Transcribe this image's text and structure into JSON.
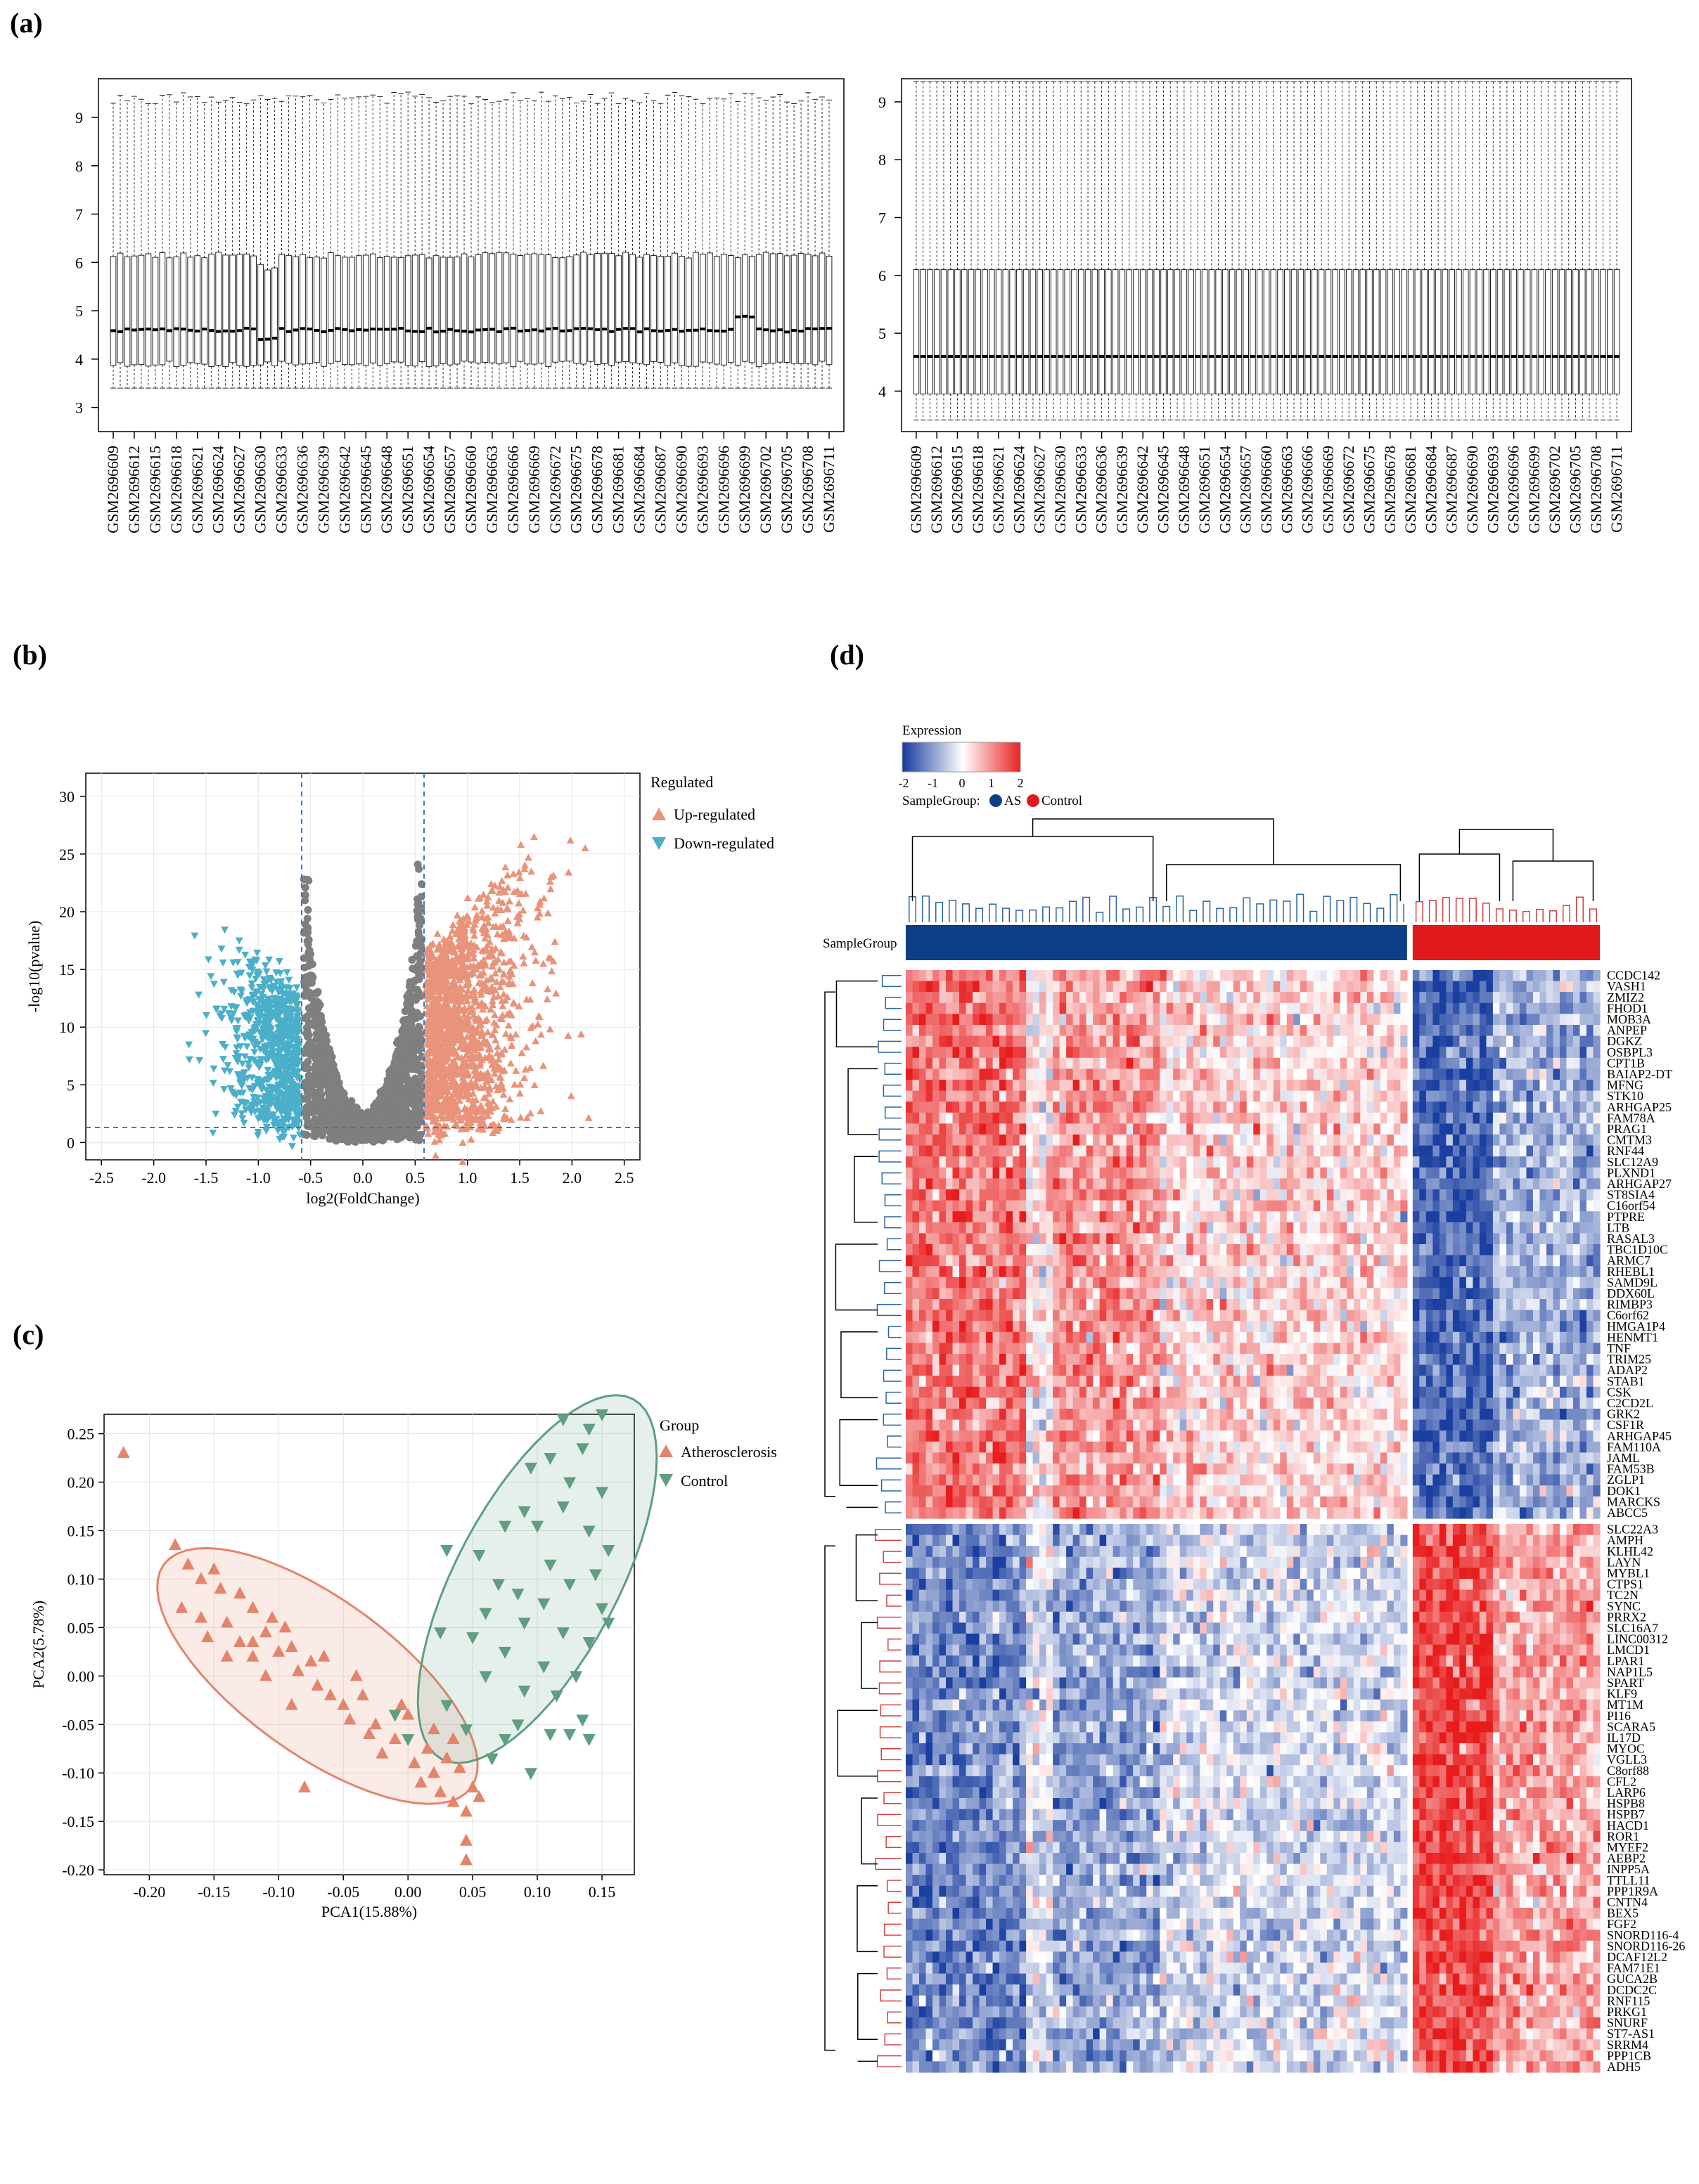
{
  "panels": {
    "a": "(a)",
    "b": "(b)",
    "c": "(c)",
    "d": "(d)"
  },
  "colors": {
    "up": "#e8937a",
    "down": "#4bafc9",
    "grey": "#7f7f7f",
    "atherosclerosis": "#e3856a",
    "control": "#5f9e80",
    "heat_high": "#e81c1c",
    "heat_low": "#1a3fa0",
    "as_bar": "#0d3f86",
    "control_bar": "#e01a1a"
  },
  "chart_data": [
    {
      "id": "a-left",
      "type": "box",
      "title": "",
      "xlabel": "",
      "ylabel": "",
      "ylim": [
        2.5,
        9.8
      ],
      "yticks": [
        3,
        4,
        5,
        6,
        7,
        8,
        9
      ],
      "samples": [
        "GSM2696609",
        "GSM2696612",
        "GSM2696615",
        "GSM2696618",
        "GSM2696621",
        "GSM2696624",
        "GSM2696627",
        "GSM2696630",
        "GSM2696633",
        "GSM2696636",
        "GSM2696639",
        "GSM2696642",
        "GSM2696645",
        "GSM2696648",
        "GSM2696651",
        "GSM2696654",
        "GSM2696657",
        "GSM2696660",
        "GSM2696663",
        "GSM2696666",
        "GSM2696669",
        "GSM2696672",
        "GSM2696675",
        "GSM2696678",
        "GSM2696681",
        "GSM2696684",
        "GSM2696687",
        "GSM2696690",
        "GSM2696693",
        "GSM2696696",
        "GSM2696699",
        "GSM2696702",
        "GSM2696705",
        "GSM2696708",
        "GSM2696711"
      ],
      "n_boxes": 103,
      "summary": {
        "whisker_low": 3.4,
        "q1": 3.9,
        "median": 4.6,
        "q3": 6.15,
        "whisker_high": 9.4
      }
    },
    {
      "id": "a-right",
      "type": "box",
      "title": "",
      "xlabel": "",
      "ylabel": "",
      "ylim": [
        3.3,
        9.4
      ],
      "yticks": [
        4,
        5,
        6,
        7,
        8,
        9
      ],
      "samples": [
        "GSM2696609",
        "GSM2696612",
        "GSM2696615",
        "GSM2696618",
        "GSM2696621",
        "GSM2696624",
        "GSM2696627",
        "GSM2696630",
        "GSM2696633",
        "GSM2696636",
        "GSM2696639",
        "GSM2696642",
        "GSM2696645",
        "GSM2696648",
        "GSM2696651",
        "GSM2696654",
        "GSM2696657",
        "GSM2696660",
        "GSM2696663",
        "GSM2696666",
        "GSM2696669",
        "GSM2696672",
        "GSM2696675",
        "GSM2696678",
        "GSM2696681",
        "GSM2696684",
        "GSM2696687",
        "GSM2696690",
        "GSM2696693",
        "GSM2696696",
        "GSM2696699",
        "GSM2696702",
        "GSM2696705",
        "GSM2696708",
        "GSM2696711"
      ],
      "n_boxes": 103,
      "summary": {
        "whisker_low": 3.5,
        "q1": 3.95,
        "median": 4.6,
        "q3": 6.1,
        "whisker_high": 9.35
      }
    },
    {
      "id": "b",
      "type": "scatter",
      "title": "",
      "xlabel": "log2(FoldChange)",
      "ylabel": "-log10(pvalue)",
      "xlim": [
        -2.65,
        2.65
      ],
      "ylim": [
        -1.5,
        32
      ],
      "xticks": [
        -2.5,
        -2.0,
        -1.5,
        -1.0,
        -0.5,
        0.0,
        0.5,
        1.0,
        1.5,
        2.0,
        2.5
      ],
      "yticks": [
        0,
        5,
        10,
        15,
        20,
        25,
        30
      ],
      "thresholds": {
        "log2fc": [
          -0.585,
          0.585
        ],
        "neglog10p": 1.3
      },
      "legend": {
        "title": "Regulated",
        "items": [
          "Up-regulated",
          "Down-regulated"
        ],
        "position": "right"
      }
    },
    {
      "id": "c",
      "type": "scatter",
      "title": "",
      "xlabel": "PCA1(15.88%)",
      "ylabel": "PCA2(5.78%)",
      "xlim": [
        -0.235,
        0.175
      ],
      "ylim": [
        -0.205,
        0.27
      ],
      "xticks": [
        -0.2,
        -0.15,
        -0.1,
        -0.05,
        0.0,
        0.05,
        0.1,
        0.15
      ],
      "yticks": [
        0.25,
        0.2,
        0.15,
        0.1,
        0.05,
        0.0,
        -0.05,
        -0.1,
        -0.15,
        -0.2
      ],
      "legend": {
        "title": "Group",
        "items": [
          "Atherosclerosis",
          "Control"
        ],
        "position": "right"
      },
      "series": [
        {
          "name": "Atherosclerosis",
          "points": [
            [
              -0.22,
              0.23
            ],
            [
              -0.18,
              0.135
            ],
            [
              -0.17,
              0.115
            ],
            [
              -0.16,
              0.1
            ],
            [
              -0.15,
              0.11
            ],
            [
              -0.145,
              0.09
            ],
            [
              -0.13,
              0.085
            ],
            [
              -0.12,
              0.07
            ],
            [
              -0.105,
              0.06
            ],
            [
              -0.095,
              0.05
            ],
            [
              -0.175,
              0.07
            ],
            [
              -0.16,
              0.06
            ],
            [
              -0.155,
              0.04
            ],
            [
              -0.14,
              0.055
            ],
            [
              -0.13,
              0.035
            ],
            [
              -0.12,
              0.02
            ],
            [
              -0.11,
              0.045
            ],
            [
              -0.1,
              0.025
            ],
            [
              -0.09,
              0.03
            ],
            [
              -0.085,
              0.005
            ],
            [
              -0.075,
              0.015
            ],
            [
              -0.07,
              -0.01
            ],
            [
              -0.065,
              0.02
            ],
            [
              -0.06,
              -0.02
            ],
            [
              -0.05,
              -0.03
            ],
            [
              -0.045,
              -0.045
            ],
            [
              -0.04,
              0.0
            ],
            [
              -0.035,
              -0.02
            ],
            [
              -0.03,
              -0.06
            ],
            [
              -0.025,
              -0.05
            ],
            [
              -0.02,
              -0.08
            ],
            [
              -0.01,
              -0.065
            ],
            [
              0.0,
              -0.04
            ],
            [
              0.005,
              -0.09
            ],
            [
              0.01,
              -0.11
            ],
            [
              0.015,
              -0.075
            ],
            [
              0.02,
              -0.1
            ],
            [
              0.025,
              -0.12
            ],
            [
              0.03,
              -0.085
            ],
            [
              0.035,
              -0.13
            ],
            [
              0.04,
              -0.095
            ],
            [
              0.045,
              -0.14
            ],
            [
              0.05,
              -0.115
            ],
            [
              0.055,
              -0.125
            ],
            [
              0.045,
              -0.17
            ],
            [
              0.045,
              -0.19
            ],
            [
              -0.08,
              -0.115
            ],
            [
              -0.11,
              0.0
            ],
            [
              -0.14,
              0.02
            ],
            [
              -0.12,
              0.035
            ],
            [
              -0.09,
              -0.03
            ],
            [
              -0.005,
              -0.03
            ],
            [
              0.02,
              -0.055
            ],
            [
              0.035,
              -0.065
            ]
          ]
        },
        {
          "name": "Control",
          "points": [
            [
              0.15,
              0.27
            ],
            [
              0.12,
              0.265
            ],
            [
              0.14,
              0.255
            ],
            [
              0.135,
              0.235
            ],
            [
              0.11,
              0.225
            ],
            [
              0.095,
              0.215
            ],
            [
              0.125,
              0.2
            ],
            [
              0.15,
              0.19
            ],
            [
              0.12,
              0.175
            ],
            [
              0.09,
              0.17
            ],
            [
              0.075,
              0.155
            ],
            [
              0.1,
              0.155
            ],
            [
              0.14,
              0.15
            ],
            [
              0.155,
              0.13
            ],
            [
              0.055,
              0.125
            ],
            [
              0.03,
              0.13
            ],
            [
              0.11,
              0.115
            ],
            [
              0.145,
              0.105
            ],
            [
              0.07,
              0.095
            ],
            [
              0.125,
              0.095
            ],
            [
              0.085,
              0.085
            ],
            [
              0.105,
              0.075
            ],
            [
              0.15,
              0.07
            ],
            [
              0.06,
              0.065
            ],
            [
              0.09,
              0.055
            ],
            [
              0.12,
              0.045
            ],
            [
              0.14,
              0.035
            ],
            [
              0.155,
              0.055
            ],
            [
              0.025,
              0.045
            ],
            [
              0.05,
              0.04
            ],
            [
              0.075,
              0.025
            ],
            [
              0.105,
              0.01
            ],
            [
              0.13,
              0.0
            ],
            [
              0.06,
              0.0
            ],
            [
              0.09,
              -0.015
            ],
            [
              0.115,
              -0.02
            ],
            [
              0.135,
              -0.045
            ],
            [
              0.03,
              -0.03
            ],
            [
              0.085,
              -0.05
            ],
            [
              0.11,
              -0.06
            ],
            [
              0.14,
              -0.065
            ],
            [
              0.075,
              -0.065
            ],
            [
              0.095,
              -0.1
            ],
            [
              0.125,
              -0.06
            ],
            [
              -0.01,
              -0.04
            ],
            [
              0.0,
              -0.065
            ],
            [
              0.045,
              -0.055
            ],
            [
              0.065,
              -0.085
            ]
          ]
        }
      ]
    },
    {
      "id": "d",
      "type": "heatmap",
      "legend": {
        "title": "Expression",
        "ticks": [
          "-2",
          "-1",
          "0",
          "1",
          "2"
        ],
        "group_label": "SampleGroup:",
        "groups": [
          "AS",
          "Control"
        ]
      },
      "annotation_label": "SampleGroup",
      "n_as": 75,
      "n_control": 28,
      "genes_up_in_as": [
        "CCDC142",
        "VASH1",
        "ZMIZ2",
        "FHOD1",
        "MOB3A",
        "ANPEP",
        "DGKZ",
        "OSBPL3",
        "CPT1B",
        "BAIAP2-DT",
        "MFNG",
        "STK10",
        "ARHGAP25",
        "FAM78A",
        "PRAG1",
        "CMTM3",
        "RNF44",
        "SLC12A9",
        "PLXND1",
        "ARHGAP27",
        "ST8SIA4",
        "C16orf54",
        "PTPRE",
        "LTB",
        "RASAL3",
        "TBC1D10C",
        "ARMC7",
        "RHEBL1",
        "SAMD9L",
        "DDX60L",
        "RIMBP3",
        "C6orf62",
        "HMGA1P4",
        "HENMT1",
        "TNF",
        "TRIM25",
        "ADAP2",
        "STAB1",
        "CSK",
        "C2CD2L",
        "GRK2",
        "CSF1R",
        "ARHGAP45",
        "FAM110A",
        "JAML",
        "FAM53B",
        "ZGLP1",
        "DOK1",
        "MARCKS",
        "ABCC5"
      ],
      "genes_up_in_control": [
        "SLC22A3",
        "AMPH",
        "KLHL42",
        "LAYN",
        "MYBL1",
        "CTPS1",
        "TC2N",
        "SYNC",
        "PRRX2",
        "SLC16A7",
        "LINC00312",
        "LMCD1",
        "LPAR1",
        "NAP1L5",
        "SPART",
        "KLF9",
        "MT1M",
        "PI16",
        "SCARA5",
        "IL17D",
        "MYOC",
        "VGLL3",
        "C8orf88",
        "CFL2",
        "LARP6",
        "HSPB8",
        "HSPB7",
        "HACD1",
        "ROR1",
        "MYEF2",
        "AEBP2",
        "INPP5A",
        "TTLL11",
        "PPP1R9A",
        "CNTN4",
        "BEX5",
        "FGF2",
        "SNORD116-4",
        "SNORD116-26",
        "DCAF12L2",
        "FAM71E1",
        "GUCA2B",
        "DCDC2C",
        "RNF115",
        "PRKG1",
        "SNURF",
        "ST7-AS1",
        "SRRM4",
        "PPP1CB",
        "ADH5"
      ]
    }
  ]
}
